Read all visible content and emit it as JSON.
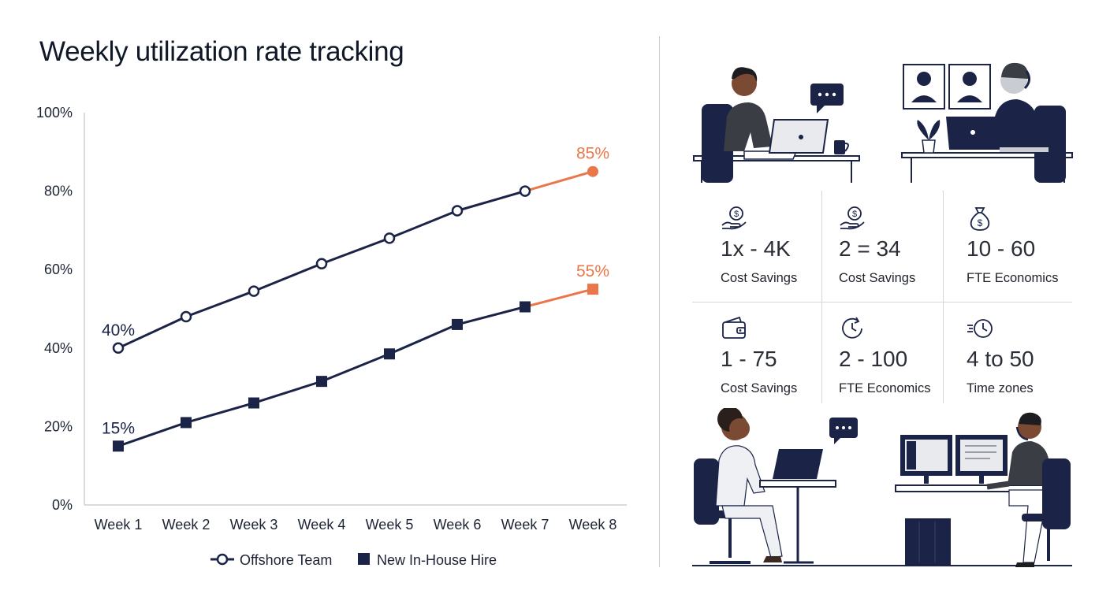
{
  "chart_data": {
    "type": "line",
    "title": "Weekly utilization rate tracking",
    "categories": [
      "Week 1",
      "Week 2",
      "Week 3",
      "Week 4",
      "Week 5",
      "Week 6",
      "Week 7",
      "Week 8"
    ],
    "ylim": [
      0,
      100
    ],
    "yticks": [
      "0%",
      "20%",
      "40%",
      "60%",
      "80%",
      "100%"
    ],
    "grid": false,
    "legend_position": "bottom-center",
    "highlight_color": "#e9774b",
    "series_color": "#1b2447",
    "series": [
      {
        "name": "Offshore Team",
        "marker": "hollow-circle",
        "values": [
          40,
          48,
          54.5,
          61.5,
          68,
          75,
          80,
          85
        ],
        "labels": {
          "0": "40%",
          "7": "85%"
        }
      },
      {
        "name": "New In-House Hire",
        "marker": "filled-square",
        "values": [
          15,
          21,
          26,
          31.5,
          38.5,
          46,
          50.5,
          55
        ],
        "labels": {
          "0": "15%",
          "7": "55%"
        }
      }
    ]
  },
  "stats": [
    {
      "icon": "hand-coin-icon",
      "value": "1x - 4K",
      "label": "Cost Savings"
    },
    {
      "icon": "hand-coin-icon",
      "value": "2 = 34",
      "label": "Cost Savings"
    },
    {
      "icon": "money-bag-icon",
      "value": "10 - 60",
      "label": "FTE Economics"
    },
    {
      "icon": "wallet-icon",
      "value": "1 - 75",
      "label": "Cost Savings"
    },
    {
      "icon": "clock-refresh-icon",
      "value": "2 - 100",
      "label": "FTE Economics"
    },
    {
      "icon": "fast-clock-icon",
      "value": "4 to 50",
      "label": "Time zones"
    }
  ],
  "illustration_colors": {
    "navy": "#1b2447",
    "skin": "#7a4a33",
    "gray": "#55585f"
  }
}
